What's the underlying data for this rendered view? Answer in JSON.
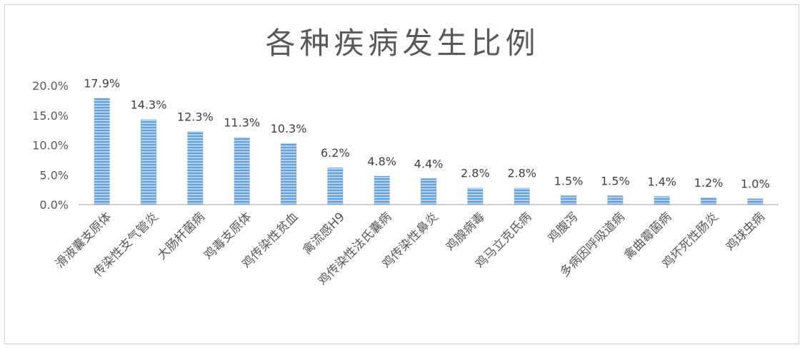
{
  "chart_data": {
    "type": "bar",
    "title": "各种疾病发生比例",
    "xlabel": "",
    "ylabel": "",
    "ylim": [
      0,
      20
    ],
    "yticks": [
      "0.0%",
      "5.0%",
      "10.0%",
      "15.0%",
      "20.0%"
    ],
    "categories": [
      "滑液囊支原体",
      "传染性支气管炎",
      "大肠杆菌病",
      "鸡毒支原体",
      "鸡传染性贫血",
      "禽流感H9",
      "鸡传染性法氏囊病",
      "鸡传染性鼻炎",
      "鸡腺病毒",
      "鸡马立克氏病",
      "鸡腹泻",
      "多病因呼吸道病",
      "禽曲霉菌病",
      "鸡坏死性肠炎",
      "鸡球虫病"
    ],
    "values": [
      17.9,
      14.3,
      12.3,
      11.3,
      10.3,
      6.2,
      4.8,
      4.4,
      2.8,
      2.8,
      1.5,
      1.5,
      1.4,
      1.2,
      1.0
    ],
    "data_labels": [
      "17.9%",
      "14.3%",
      "12.3%",
      "11.3%",
      "10.3%",
      "6.2%",
      "4.8%",
      "4.4%",
      "2.8%",
      "2.8%",
      "1.5%",
      "1.5%",
      "1.4%",
      "1.2%",
      "1.0%"
    ],
    "grid": false,
    "legend": "none",
    "bar_color": "#9dc3e6",
    "stripe_color": "#ffffff"
  }
}
